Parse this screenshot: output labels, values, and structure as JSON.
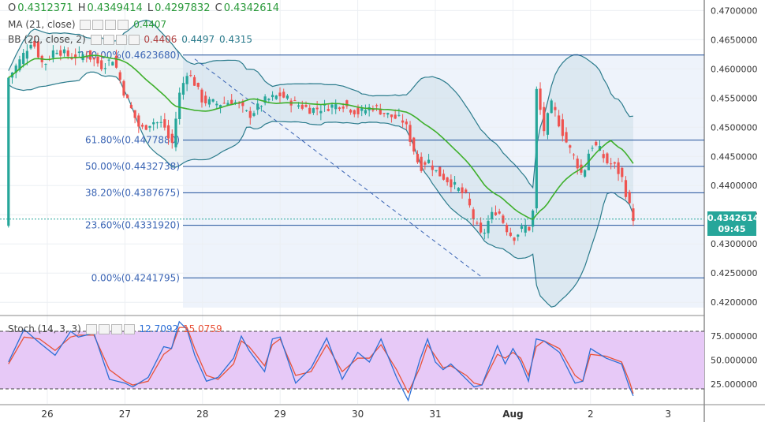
{
  "header": {
    "ohlc": {
      "o_label": "O",
      "o": "0.4312371",
      "h_label": "H",
      "h": "0.4349414",
      "l_label": "L",
      "l": "0.4297832",
      "c_label": "C",
      "c": "0.4342614"
    },
    "ma": {
      "label": "MA (21, close)",
      "value": "0.4407"
    },
    "bb": {
      "label": "BB (20, close, 2)",
      "v1": "0.4406",
      "v2": "0.4497",
      "v3": "0.4315"
    },
    "stoch": {
      "label": "Stoch (14, 3, 3)",
      "k": "12.7092",
      "d": "15.0759"
    }
  },
  "price_badge": {
    "value": "0.4342614",
    "countdown": "09:45"
  },
  "colors": {
    "up": "#26a69a",
    "down": "#ef5350",
    "ma": "#3fb02c",
    "bb": "#2b7b8c",
    "fib": "#1e4f9a",
    "stoch_k": "#2d6fd6",
    "stoch_d": "#e8533a",
    "stoch_bg": "#e7c9f7"
  },
  "chart_data": {
    "type": "candlestick",
    "x_labels": [
      "26",
      "27",
      "28",
      "29",
      "30",
      "31",
      "Aug",
      "2",
      "3"
    ],
    "y_ticks": [
      "0.4700000",
      "0.4650000",
      "0.4600000",
      "0.4550000",
      "0.4500000",
      "0.4450000",
      "0.4400000",
      "0.4350000",
      "0.4300000",
      "0.4250000",
      "0.4200000"
    ],
    "ylim": [
      0.418,
      0.4718
    ],
    "fib_levels": [
      {
        "label": "100.00%(0.4623680)",
        "value": 0.462368
      },
      {
        "label": "61.80%(0.4477880)",
        "value": 0.447788
      },
      {
        "label": "50.00%(0.4432738)",
        "value": 0.4432738
      },
      {
        "label": "38.20%(0.4387675)",
        "value": 0.4387675
      },
      {
        "label": "23.60%(0.4331920)",
        "value": 0.433192
      },
      {
        "label": "0.00%(0.4241795)",
        "value": 0.4241795
      }
    ],
    "current_price": 0.4342614,
    "close_path": [
      [
        25.5,
        0.4585
      ],
      [
        25.65,
        0.4615
      ],
      [
        25.8,
        0.465
      ],
      [
        25.95,
        0.4605
      ],
      [
        26.1,
        0.4635
      ],
      [
        26.3,
        0.462
      ],
      [
        26.5,
        0.4625
      ],
      [
        26.7,
        0.4605
      ],
      [
        26.85,
        0.4618
      ],
      [
        27.0,
        0.4555
      ],
      [
        27.1,
        0.4525
      ],
      [
        27.2,
        0.4495
      ],
      [
        27.35,
        0.451
      ],
      [
        27.5,
        0.4505
      ],
      [
        27.6,
        0.4465
      ],
      [
        27.7,
        0.4555
      ],
      [
        27.8,
        0.4595
      ],
      [
        27.9,
        0.4575
      ],
      [
        28.0,
        0.4545
      ],
      [
        28.2,
        0.454
      ],
      [
        28.4,
        0.4545
      ],
      [
        28.6,
        0.452
      ],
      [
        28.8,
        0.4545
      ],
      [
        29.0,
        0.4555
      ],
      [
        29.2,
        0.454
      ],
      [
        29.4,
        0.453
      ],
      [
        29.6,
        0.4535
      ],
      [
        29.8,
        0.454
      ],
      [
        30.0,
        0.4525
      ],
      [
        30.2,
        0.4535
      ],
      [
        30.4,
        0.452
      ],
      [
        30.6,
        0.451
      ],
      [
        30.7,
        0.447
      ],
      [
        30.8,
        0.443
      ],
      [
        30.9,
        0.4445
      ],
      [
        31.0,
        0.4425
      ],
      [
        31.2,
        0.4405
      ],
      [
        31.4,
        0.438
      ],
      [
        31.5,
        0.434
      ],
      [
        31.6,
        0.431
      ],
      [
        31.7,
        0.4345
      ],
      [
        31.8,
        0.436
      ],
      [
        31.9,
        0.433
      ],
      [
        32.0,
        0.431
      ],
      [
        32.15,
        0.433
      ],
      [
        32.25,
        0.4325
      ],
      [
        32.3,
        0.4565
      ],
      [
        32.4,
        0.4495
      ],
      [
        32.5,
        0.454
      ],
      [
        32.6,
        0.4505
      ],
      [
        32.7,
        0.447
      ],
      [
        32.8,
        0.4445
      ],
      [
        32.9,
        0.4415
      ],
      [
        33.0,
        0.447
      ],
      [
        33.1,
        0.4465
      ],
      [
        33.2,
        0.444
      ],
      [
        33.3,
        0.4435
      ],
      [
        33.4,
        0.4415
      ],
      [
        33.5,
        0.4365
      ],
      [
        33.6,
        0.433
      ],
      [
        33.55,
        0.4345
      ]
    ],
    "stoch_k": [
      [
        25.5,
        48
      ],
      [
        25.7,
        82
      ],
      [
        25.9,
        68
      ],
      [
        26.1,
        55
      ],
      [
        26.3,
        80
      ],
      [
        26.4,
        74
      ],
      [
        26.6,
        78
      ],
      [
        26.8,
        30
      ],
      [
        27.0,
        26
      ],
      [
        27.1,
        22
      ],
      [
        27.3,
        32
      ],
      [
        27.5,
        64
      ],
      [
        27.6,
        62
      ],
      [
        27.7,
        90
      ],
      [
        27.8,
        82
      ],
      [
        27.9,
        55
      ],
      [
        28.05,
        28
      ],
      [
        28.2,
        32
      ],
      [
        28.4,
        52
      ],
      [
        28.5,
        75
      ],
      [
        28.6,
        60
      ],
      [
        28.8,
        38
      ],
      [
        28.9,
        72
      ],
      [
        29.0,
        74
      ],
      [
        29.2,
        26
      ],
      [
        29.4,
        42
      ],
      [
        29.6,
        73
      ],
      [
        29.8,
        30
      ],
      [
        30.0,
        58
      ],
      [
        30.15,
        48
      ],
      [
        30.3,
        72
      ],
      [
        30.5,
        32
      ],
      [
        30.65,
        8
      ],
      [
        30.8,
        50
      ],
      [
        30.9,
        72
      ],
      [
        31.0,
        48
      ],
      [
        31.1,
        40
      ],
      [
        31.2,
        46
      ],
      [
        31.4,
        30
      ],
      [
        31.5,
        22
      ],
      [
        31.6,
        24
      ],
      [
        31.8,
        65
      ],
      [
        31.9,
        46
      ],
      [
        32.0,
        62
      ],
      [
        32.1,
        48
      ],
      [
        32.2,
        28
      ],
      [
        32.3,
        72
      ],
      [
        32.4,
        70
      ],
      [
        32.6,
        58
      ],
      [
        32.8,
        26
      ],
      [
        32.9,
        28
      ],
      [
        33.0,
        62
      ],
      [
        33.2,
        52
      ],
      [
        33.4,
        46
      ],
      [
        33.5,
        22
      ],
      [
        33.55,
        12.7
      ]
    ],
    "stoch_d": [
      [
        25.5,
        46
      ],
      [
        25.7,
        74
      ],
      [
        25.9,
        72
      ],
      [
        26.1,
        60
      ],
      [
        26.3,
        74
      ],
      [
        26.4,
        76
      ],
      [
        26.6,
        76
      ],
      [
        26.8,
        40
      ],
      [
        27.0,
        28
      ],
      [
        27.1,
        24
      ],
      [
        27.3,
        28
      ],
      [
        27.5,
        56
      ],
      [
        27.6,
        62
      ],
      [
        27.7,
        84
      ],
      [
        27.8,
        84
      ],
      [
        27.9,
        62
      ],
      [
        28.05,
        34
      ],
      [
        28.2,
        30
      ],
      [
        28.4,
        46
      ],
      [
        28.5,
        70
      ],
      [
        28.6,
        64
      ],
      [
        28.8,
        44
      ],
      [
        28.9,
        66
      ],
      [
        29.0,
        72
      ],
      [
        29.2,
        34
      ],
      [
        29.4,
        38
      ],
      [
        29.6,
        66
      ],
      [
        29.8,
        38
      ],
      [
        30.0,
        52
      ],
      [
        30.15,
        52
      ],
      [
        30.3,
        66
      ],
      [
        30.5,
        40
      ],
      [
        30.65,
        16
      ],
      [
        30.8,
        42
      ],
      [
        30.9,
        66
      ],
      [
        31.0,
        54
      ],
      [
        31.1,
        42
      ],
      [
        31.2,
        44
      ],
      [
        31.4,
        34
      ],
      [
        31.5,
        26
      ],
      [
        31.6,
        24
      ],
      [
        31.8,
        56
      ],
      [
        31.9,
        52
      ],
      [
        32.0,
        58
      ],
      [
        32.1,
        52
      ],
      [
        32.2,
        34
      ],
      [
        32.3,
        64
      ],
      [
        32.4,
        70
      ],
      [
        32.6,
        62
      ],
      [
        32.8,
        34
      ],
      [
        32.9,
        28
      ],
      [
        33.0,
        56
      ],
      [
        33.2,
        54
      ],
      [
        33.4,
        48
      ],
      [
        33.5,
        28
      ],
      [
        33.55,
        15.1
      ]
    ],
    "stoch_ticks": [
      "75.000000",
      "50.000000",
      "25.000000"
    ],
    "stoch_levels": [
      80,
      20
    ]
  }
}
